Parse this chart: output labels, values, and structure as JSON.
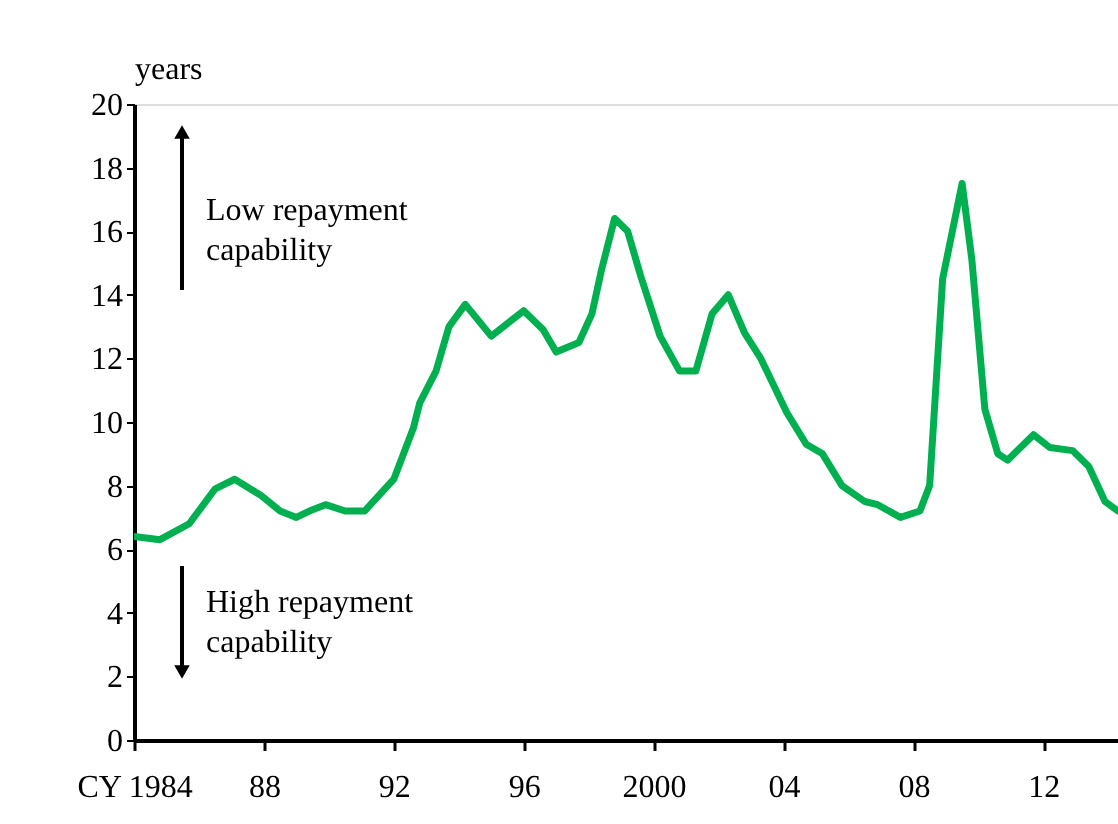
{
  "chart_data": {
    "type": "line",
    "ylabel": "years",
    "x": [
      1984,
      1984.8,
      1985.7,
      1986.5,
      1987.1,
      1987.9,
      1988.5,
      1989,
      1989.4,
      1989.9,
      1990.5,
      1991.1,
      1992,
      1992.6,
      1992.8,
      1993.3,
      1993.7,
      1994.2,
      1995,
      1996,
      1996.6,
      1997,
      1997.7,
      1998.1,
      1998.4,
      1998.8,
      1999.2,
      1999.6,
      2000.2,
      2000.8,
      2001.3,
      2001.8,
      2002.3,
      2002.8,
      2003.3,
      2004.1,
      2004.7,
      2005.2,
      2005.8,
      2006.5,
      2006.9,
      2007.6,
      2008.2,
      2008.5,
      2008.9,
      2009.5,
      2009.8,
      2010.2,
      2010.6,
      2010.9,
      2011.7,
      2012.2,
      2012.9,
      2013.4,
      2013.9,
      2014.3
    ],
    "series": [
      {
        "color": "#00b050",
        "values": [
          6.4,
          6.3,
          6.8,
          7.9,
          8.2,
          7.7,
          7.2,
          7.0,
          7.2,
          7.4,
          7.2,
          7.2,
          8.2,
          9.8,
          10.6,
          11.6,
          13.0,
          13.7,
          12.7,
          13.5,
          12.9,
          12.2,
          12.5,
          13.4,
          14.8,
          16.4,
          16.0,
          14.6,
          12.7,
          11.6,
          11.6,
          13.4,
          14.0,
          12.8,
          12.0,
          10.3,
          9.3,
          9.0,
          8.0,
          7.5,
          7.4,
          7.0,
          7.2,
          8.0,
          14.5,
          17.5,
          15.1,
          10.4,
          9.0,
          8.8,
          9.6,
          9.2,
          9.1,
          8.6,
          7.5,
          7.2
        ]
      }
    ],
    "xlim": [
      1984,
      2014.3
    ],
    "xticks": [
      {
        "value": 1984,
        "label": "CY 1984"
      },
      {
        "value": 1988,
        "label": "88"
      },
      {
        "value": 1992,
        "label": "92"
      },
      {
        "value": 1996,
        "label": "96"
      },
      2000,
      {
        "value": 2004,
        "label": "04"
      },
      {
        "value": 2008,
        "label": "08"
      },
      {
        "value": 2012,
        "label": "12"
      }
    ],
    "ylim": [
      0,
      20
    ],
    "yticks": [
      0,
      2,
      4,
      6,
      8,
      10,
      12,
      14,
      16,
      18,
      20
    ],
    "annotations": [
      "Low repayment\ncapability",
      "High repayment\ncapability"
    ],
    "grid": false,
    "line_style": "solid",
    "marker": "none"
  }
}
